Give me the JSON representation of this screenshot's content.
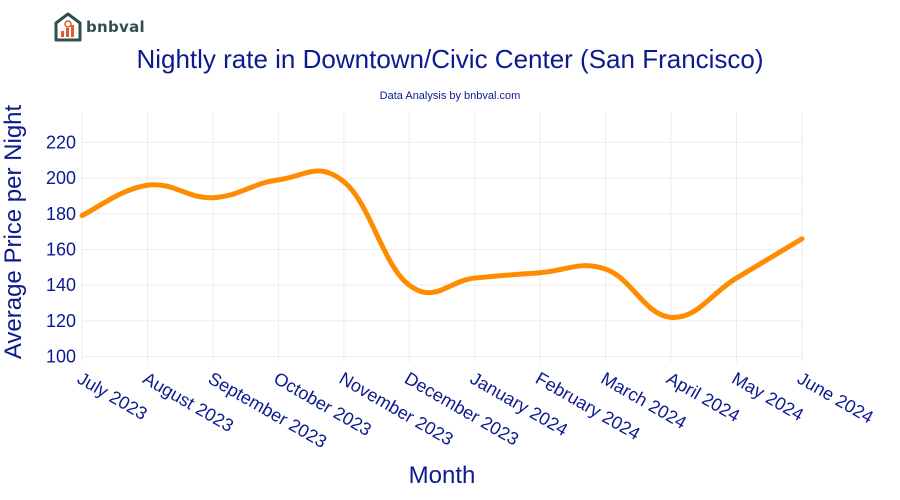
{
  "brand": {
    "name": "bnbval",
    "icon": "house-chart-icon"
  },
  "chart_data": {
    "type": "line",
    "title": "Nightly rate in Downtown/Civic Center (San Francisco)",
    "subtitle": "Data Analysis by bnbval.com",
    "xlabel": "Month",
    "ylabel": "Average Price per Night",
    "categories": [
      "July 2023",
      "August 2023",
      "September 2023",
      "October 2023",
      "November 2023",
      "December 2023",
      "January 2024",
      "February 2024",
      "March 2024",
      "April 2024",
      "May 2024",
      "June 2024"
    ],
    "series": [
      {
        "name": "Average Price per Night",
        "color": "#ff8c00",
        "values": [
          179,
          196,
          189,
          199,
          198,
          140,
          144,
          147,
          149,
          122,
          144,
          166
        ]
      }
    ],
    "ylim": [
      97,
      237
    ],
    "yticks": [
      100,
      120,
      140,
      160,
      180,
      200,
      220
    ],
    "grid": true
  }
}
